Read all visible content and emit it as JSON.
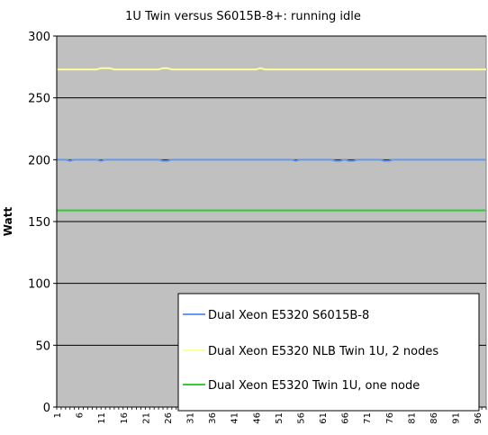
{
  "chart_data": {
    "type": "line",
    "title": "1U Twin versus S6015B-8+: running idle",
    "xlabel": "",
    "ylabel": "Watt",
    "ylim": [
      0,
      300
    ],
    "yticks": [
      0,
      50,
      100,
      150,
      200,
      250,
      300
    ],
    "xlim": [
      1,
      98
    ],
    "xticks": [
      1,
      6,
      11,
      16,
      21,
      26,
      31,
      36,
      41,
      46,
      51,
      56,
      61,
      66,
      71,
      76,
      81,
      86,
      91,
      96
    ],
    "grid": "horizontal",
    "plot_background": "#c0c0c0",
    "legend_position": "bottom-right",
    "series": [
      {
        "name": "Dual Xeon E5320  S6015B-8",
        "color": "#6699ee",
        "values": [
          200,
          200,
          200,
          199,
          200,
          200,
          200,
          200,
          200,
          200,
          199,
          200,
          200,
          200,
          200,
          200,
          200,
          200,
          200,
          200,
          200,
          200,
          200,
          200,
          199,
          199,
          200,
          200,
          200,
          200,
          200,
          200,
          200,
          200,
          200,
          200,
          200,
          200,
          200,
          200,
          200,
          200,
          200,
          200,
          200,
          200,
          200,
          200,
          200,
          200,
          200,
          200,
          200,
          200,
          199,
          200,
          200,
          200,
          200,
          200,
          200,
          200,
          200,
          199,
          199,
          200,
          199,
          199,
          200,
          200,
          200,
          200,
          200,
          200,
          199,
          199,
          200,
          200,
          200,
          200,
          200,
          200,
          200,
          200,
          200,
          200,
          200,
          200,
          200,
          200,
          200,
          200,
          200,
          200,
          200,
          200,
          200,
          200
        ]
      },
      {
        "name": "Dual Xeon E5320 NLB Twin 1U, 2 nodes",
        "color": "#ffff99",
        "values": [
          273,
          273,
          273,
          273,
          273,
          273,
          273,
          273,
          273,
          273,
          274,
          274,
          274,
          273,
          273,
          273,
          273,
          273,
          273,
          273,
          273,
          273,
          273,
          273,
          274,
          274,
          273,
          273,
          273,
          273,
          273,
          273,
          273,
          273,
          273,
          273,
          273,
          273,
          273,
          273,
          273,
          273,
          273,
          273,
          273,
          273,
          274,
          273,
          273,
          273,
          273,
          273,
          273,
          273,
          273,
          273,
          273,
          273,
          273,
          273,
          273,
          273,
          273,
          273,
          273,
          273,
          273,
          273,
          273,
          273,
          273,
          273,
          273,
          273,
          273,
          273,
          273,
          273,
          273,
          273,
          273,
          273,
          273,
          273,
          273,
          273,
          273,
          273,
          273,
          273,
          273,
          273,
          273,
          273,
          273,
          273,
          273,
          273
        ]
      },
      {
        "name": "Dual Xeon E5320 Twin 1U, one node",
        "color": "#33cc33",
        "values": [
          159,
          159,
          159,
          159,
          159,
          159,
          159,
          159,
          159,
          159,
          159,
          159,
          159,
          159,
          159,
          159,
          159,
          159,
          159,
          159,
          159,
          159,
          159,
          159,
          159,
          159,
          159,
          159,
          159,
          159,
          159,
          159,
          159,
          159,
          159,
          159,
          159,
          159,
          159,
          159,
          159,
          159,
          159,
          159,
          159,
          159,
          159,
          159,
          159,
          159,
          159,
          159,
          159,
          159,
          159,
          159,
          159,
          159,
          159,
          159,
          159,
          159,
          159,
          159,
          159,
          159,
          159,
          159,
          159,
          159,
          159,
          159,
          159,
          159,
          159,
          159,
          159,
          159,
          159,
          159,
          159,
          159,
          159,
          159,
          159,
          159,
          159,
          159,
          159,
          159,
          159,
          159,
          159,
          159,
          159,
          159,
          159,
          159
        ]
      }
    ]
  }
}
